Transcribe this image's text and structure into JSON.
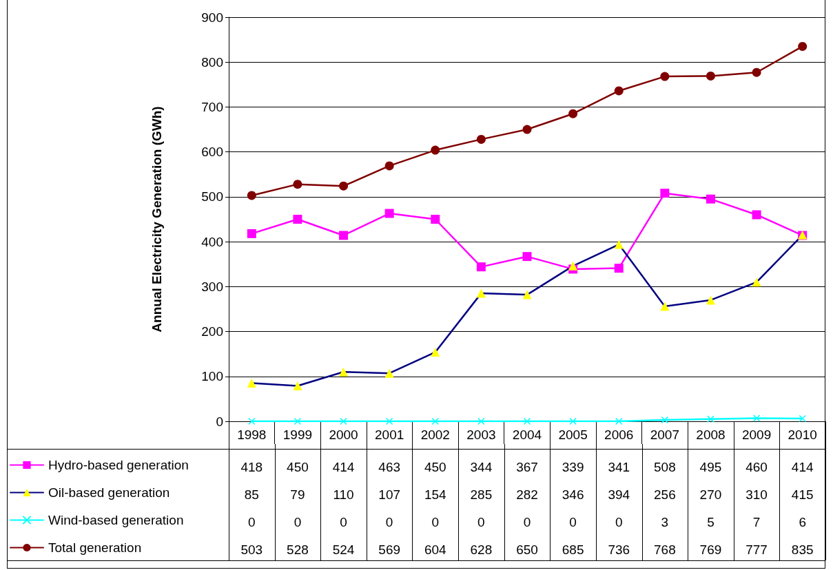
{
  "chart_data": {
    "type": "line",
    "ylabel": "Annual Electricity Generation (GWh)",
    "categories": [
      "1998",
      "1999",
      "2000",
      "2001",
      "2002",
      "2003",
      "2004",
      "2005",
      "2006",
      "2007",
      "2008",
      "2009",
      "2010"
    ],
    "series": [
      {
        "name": "Hydro-based generation",
        "color": "#ff00ff",
        "marker": "square",
        "values": [
          418,
          450,
          414,
          463,
          450,
          344,
          367,
          339,
          341,
          508,
          495,
          460,
          414
        ]
      },
      {
        "name": "Oil-based generation",
        "color": "#000080",
        "marker": "triangle",
        "colors": [
          "#ffff00",
          "#ffff00",
          "#ffff00",
          "#ffff00",
          "#ffff00",
          "#ffff00",
          "#ffff00",
          "#ffff00",
          "#ffff00",
          "#ffff00",
          "#ffff00",
          "#ffff00",
          "#ffff00"
        ],
        "values": [
          85,
          79,
          110,
          107,
          154,
          285,
          282,
          346,
          394,
          256,
          270,
          310,
          415
        ]
      },
      {
        "name": "Wind-based generation",
        "color": "#00ffff",
        "marker": "cross",
        "values": [
          0,
          0,
          0,
          0,
          0,
          0,
          0,
          0,
          0,
          3,
          5,
          7,
          6
        ]
      },
      {
        "name": "Total generation",
        "color": "#800000",
        "marker": "circle",
        "values": [
          503,
          528,
          524,
          569,
          604,
          628,
          650,
          685,
          736,
          768,
          769,
          777,
          835
        ]
      }
    ],
    "ylim": [
      0,
      900
    ],
    "yticks": [
      0,
      100,
      200,
      300,
      400,
      500,
      600,
      700,
      800,
      900
    ],
    "grid": "y",
    "legend": "bottom",
    "data_labels": true
  }
}
